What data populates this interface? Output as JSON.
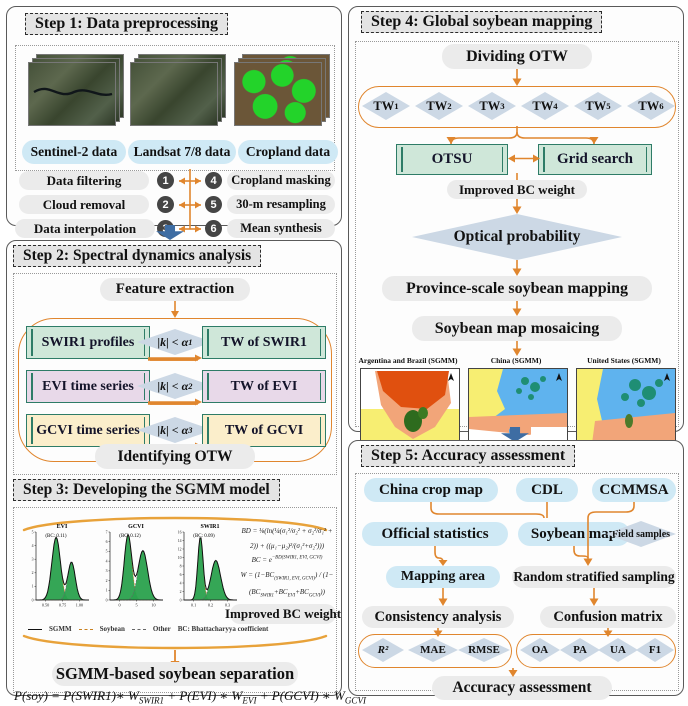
{
  "colors": {
    "accent_orange": "#e0862e",
    "pill_blue": "#cfe9f5",
    "pill_gray": "#ebebeb",
    "teal_border": "#2e7c67",
    "box_green": "#cfe7d9",
    "box_purple": "#e8d9e9",
    "box_cream": "#fbeecb",
    "diamond_blue": "#ccd8e5",
    "big_arrow_blue": "#3e6da3",
    "plot_green": "#2aa14d"
  },
  "step1": {
    "title": "Step 1: Data preprocessing",
    "images": [
      {
        "label": "Sentinel-2 data"
      },
      {
        "label": "Landsat 7/8 data"
      },
      {
        "label": "Cropland data"
      }
    ],
    "ops_left": [
      {
        "num": "1",
        "label": "Data filtering"
      },
      {
        "num": "2",
        "label": "Cloud removal"
      },
      {
        "num": "3",
        "label": "Data interpolation"
      }
    ],
    "ops_right": [
      {
        "num": "4",
        "label": "Cropland masking"
      },
      {
        "num": "5",
        "label": "30-m resampling"
      },
      {
        "num": "6",
        "label": "Mean synthesis"
      }
    ]
  },
  "step2": {
    "title": "Step 2: Spectral dynamics analysis",
    "feature": "Feature extraction",
    "rows": [
      {
        "left": "SWIR1 profiles",
        "cond": "|k| < α~1~",
        "right": "TW of SWIR1"
      },
      {
        "left": "EVI time series",
        "cond": "|k| < α~2~",
        "right": "TW of EVI"
      },
      {
        "left": "GCVI time series",
        "cond": "|k| < α~3~",
        "right": "TW of GCVI"
      }
    ],
    "identify": "Identifying OTW"
  },
  "step3": {
    "title": "Step 3: Developing the SGMM model",
    "plots": [
      {
        "title": "EVI",
        "bc": "(BC: 0.11)",
        "xticks": [
          "0.50",
          "0.75",
          "1.00"
        ],
        "yticks": [
          "0",
          "1",
          "2",
          "3",
          "4",
          "5"
        ],
        "ymax": 5.2,
        "peaks": [
          {
            "mu": 0.38,
            "sigma": 0.08,
            "h": 4.8
          },
          {
            "mu": 0.67,
            "sigma": 0.07,
            "h": 2.9
          }
        ]
      },
      {
        "title": "GCVI",
        "bc": "(BC: 0.12)",
        "xticks": [
          "0",
          "5",
          "10"
        ],
        "yticks": [
          "0",
          "1",
          "2",
          "3",
          "4",
          "5",
          "6",
          "7"
        ],
        "ymax": 7.3,
        "peaks": [
          {
            "mu": 0.34,
            "sigma": 0.07,
            "h": 7.0
          },
          {
            "mu": 0.62,
            "sigma": 0.09,
            "h": 5.3
          }
        ]
      },
      {
        "title": "SWIR1",
        "bc": "(BC: 0.09)",
        "xticks": [
          "0.1",
          "0.2",
          "0.3"
        ],
        "yticks": [
          "0",
          "2",
          "4",
          "6",
          "8",
          "10",
          "12",
          "14",
          "16"
        ],
        "ymax": 16.5,
        "peaks": [
          {
            "mu": 0.31,
            "sigma": 0.05,
            "h": 15.3
          },
          {
            "mu": 0.6,
            "sigma": 0.09,
            "h": 9.6
          }
        ]
      }
    ],
    "formulas": [
      "BD = ⅛(ln(¼(σ₁²/σ₂² + σ₂²/σ₁² + 2)) + ((μ₁−μ₂)²/(σ₁²+σ₂²)))",
      "BC = e^−BD(SWIR1, EVI, GCVI)^",
      "W = (1−BC~(SWIR1, EVI, GCVI)~) / (1−(BC~SWIR1~+BC~EVI~+BC~GCVI~))"
    ],
    "improved": "Improved BC weight",
    "legend": {
      "sgmm": "SGMM",
      "soybean": "Soybean",
      "other": "Other",
      "note": "BC: Bhattacharyya coefficient"
    },
    "separation": "SGMM-based soybean separation",
    "equation": "P(soy) = P(SWIR1)∗ W~SWIR1~ + P(EVI) ∗ W~EVI~ + P(GCVI) ∗ W~GCVI~"
  },
  "step4": {
    "title": "Step 4: Global soybean mapping",
    "dividing": "Dividing OTW",
    "tw": [
      "TW~1~",
      "TW~2~",
      "TW~3~",
      "TW~4~",
      "TW~5~",
      "TW~6~"
    ],
    "otsu": "OTSU",
    "grid": "Grid search",
    "improved": "Improved BC weight",
    "optical": "Optical probability",
    "province": "Province-scale soybean mapping",
    "mosaic": "Soybean map mosaicing",
    "maps": [
      {
        "title": "Argentina and Brazil (SGMM)"
      },
      {
        "title": "China (SGMM)"
      },
      {
        "title": "United States (SGMM)"
      }
    ]
  },
  "step5": {
    "title": "Step 5: Accuracy assessment",
    "china": "China crop map",
    "cdl": "CDL",
    "ccmmsa": "CCMMSA",
    "official": "Official statistics",
    "soybean_map": "Soybean map",
    "field": "Field samples",
    "mapping_area": "Mapping area",
    "random": "Random stratified sampling",
    "consistency": "Consistency analysis",
    "confusion": "Confusion matrix",
    "metrics_left": [
      "R²",
      "MAE",
      "RMSE"
    ],
    "metrics_right": [
      "OA",
      "PA",
      "UA",
      "F1"
    ],
    "accuracy": "Accuracy assessment"
  }
}
